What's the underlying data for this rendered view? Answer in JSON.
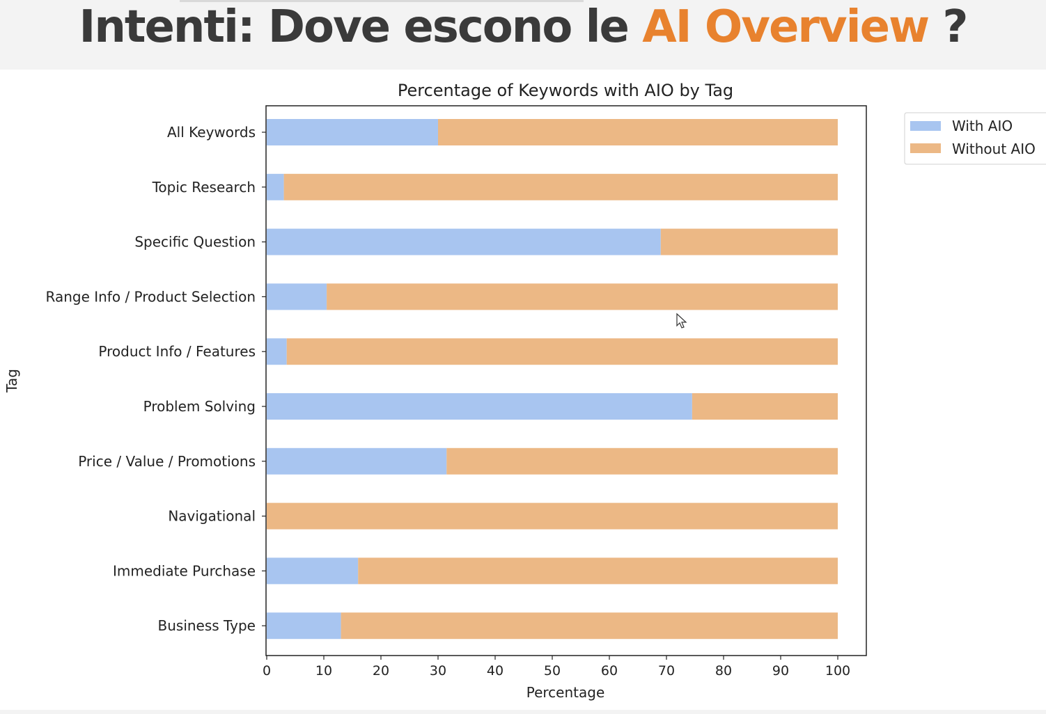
{
  "slide": {
    "title_main": "Intenti: Dove escono le ",
    "title_accent": "AI Overview",
    "title_end": " ?"
  },
  "colors": {
    "accent": "#e8822e",
    "with_aio": "#a8c5f0",
    "without_aio": "#ecb885",
    "banner_bg": "#f3f3f3"
  },
  "chart_data": {
    "type": "bar",
    "orientation": "horizontal",
    "stacked": true,
    "title": "Percentage of Keywords with AIO by Tag",
    "xlabel": "Percentage",
    "ylabel": "Tag",
    "xlim": [
      0,
      105
    ],
    "xticks": [
      0,
      10,
      20,
      30,
      40,
      50,
      60,
      70,
      80,
      90,
      100
    ],
    "grid": false,
    "legend_position": "outside top-right",
    "categories": [
      "All Keywords",
      "Topic Research",
      "Specific Question",
      "Range Info / Product Selection",
      "Product Info / Features",
      "Problem Solving",
      "Price / Value / Promotions",
      "Navigational",
      "Immediate Purchase",
      "Business Type"
    ],
    "series": [
      {
        "name": "With AIO",
        "color": "#a8c5f0",
        "values": [
          30,
          3,
          69,
          10.5,
          3.5,
          74.5,
          31.5,
          0,
          16,
          13
        ]
      },
      {
        "name": "Without AIO",
        "color": "#ecb885",
        "values": [
          70,
          97,
          31,
          89.5,
          96.5,
          25.5,
          68.5,
          100,
          84,
          87
        ]
      }
    ]
  }
}
